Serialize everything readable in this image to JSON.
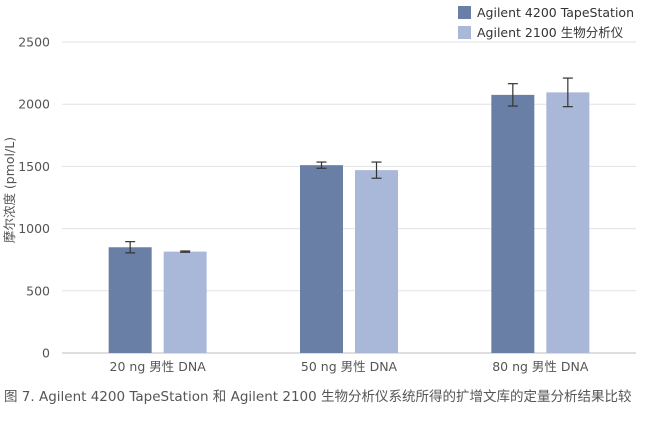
{
  "chart_data": {
    "type": "bar",
    "categories": [
      "20 ng 男性 DNA",
      "50 ng 男性 DNA",
      "80 ng 男性 DNA"
    ],
    "series": [
      {
        "name": "Agilent 4200 TapeStation",
        "values": [
          850,
          1510,
          2075
        ],
        "error": [
          45,
          25,
          90
        ],
        "color": "#6a7fa6"
      },
      {
        "name": "Agilent 2100 生物分析仪",
        "values": [
          815,
          1470,
          2095
        ],
        "error": [
          5,
          65,
          115
        ],
        "color": "#a9b7d8"
      }
    ],
    "ylabel": "摩尔浓度 (pmol/L)",
    "xlabel": "",
    "ylim": [
      0,
      2500
    ],
    "yticks": [
      0,
      500,
      1000,
      1500,
      2000,
      2500
    ],
    "grid": true,
    "legend": "top-right"
  },
  "caption": "图 7. Agilent 4200 TapeStation 和 Agilent 2100 生物分析仪系统所得的扩增文库的定量分析结果比较"
}
